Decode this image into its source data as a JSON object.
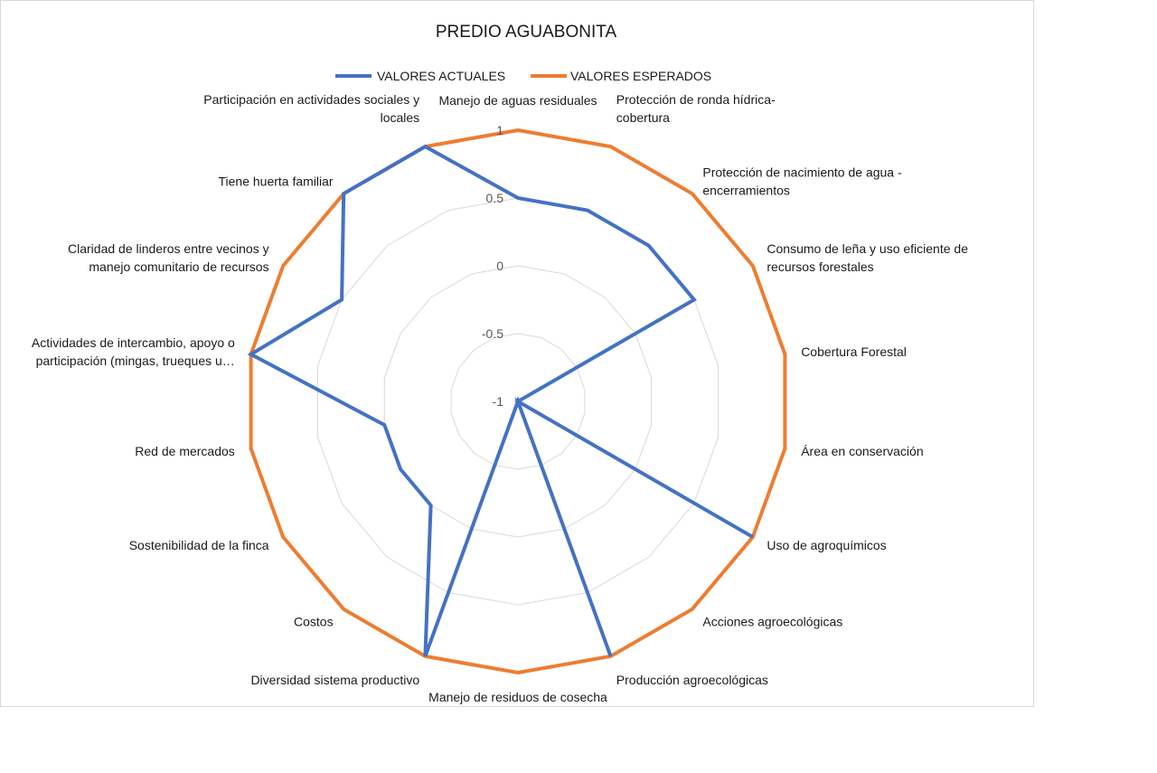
{
  "chart_data": {
    "type": "radar",
    "title": "PREDIO AGUABONITA",
    "categories": [
      "Manejo de aguas residuales",
      "Protección de ronda hídrica-\ncobertura",
      "Protección de nacimiento de agua -\nencerramientos",
      "Consumo de leña y uso eficiente de\nrecursos forestales",
      "Cobertura Forestal",
      "Área en conservación",
      "Uso de agroquímicos",
      "Acciones agroecológicas",
      "Producción agroecológicas",
      "Manejo de residuos de cosecha",
      "Diversidad sistema productivo",
      "Costos",
      "Sostenibilidad de la finca",
      "Red de mercados",
      "Actividades de intercambio, apoyo o\nparticipación (mingas, trueques u…",
      "Claridad de linderos entre vecinos y\nmanejo comunitario de recursos",
      "Tiene huerta familiar",
      "Participación en actividades sociales y\nlocales"
    ],
    "series": [
      {
        "name": "VALORES ACTUALES",
        "color": "#4472C4",
        "values": [
          0.5,
          0.5,
          0.5,
          0.5,
          -1,
          -1,
          1,
          -1,
          1,
          -1,
          1,
          0,
          0,
          0,
          1,
          0.5,
          1,
          1
        ]
      },
      {
        "name": "VALORES ESPERADOS",
        "color": "#ED7D31",
        "values": [
          1,
          1,
          1,
          1,
          1,
          1,
          1,
          1,
          1,
          1,
          1,
          1,
          1,
          1,
          1,
          1,
          1,
          1
        ]
      }
    ],
    "axis": {
      "min": -1,
      "max": 1,
      "step": 0.5,
      "tick_labels": [
        "-1",
        "-0.5",
        "0",
        "0.5",
        "1"
      ]
    },
    "grid": true,
    "legend_position": "top"
  }
}
